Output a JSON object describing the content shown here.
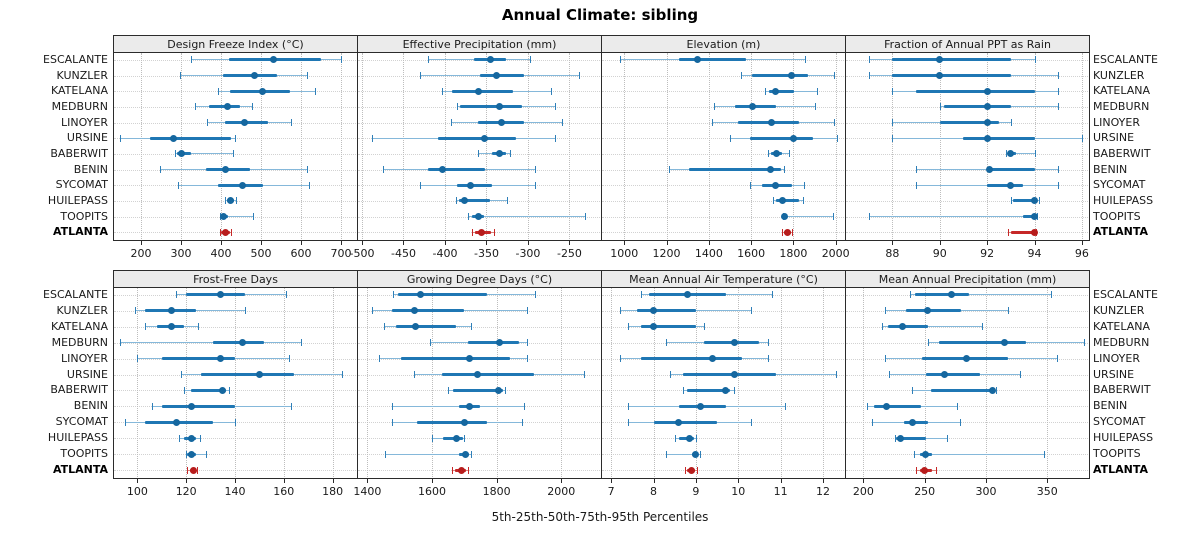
{
  "title": "Annual Climate: sibling",
  "caption": "5th-25th-50th-75th-95th Percentiles",
  "colors": {
    "blue_main": "#1f77b4",
    "blue_pale": "#85b8da",
    "blue_cap": "#2f7fb8",
    "blue_dot": "#15679f",
    "red_main": "#c62828",
    "red_pale": "#d9827a",
    "red_cap": "#c62828",
    "red_dot": "#b71c1c",
    "header_bg": "#ebebeb",
    "border": "#2b2b2b",
    "grid_vertical": "#bdbdbd",
    "grid_horizontal": "#d2d2d2"
  },
  "chart_data": {
    "type": "dotplot-percentile-trellis",
    "percentile_labels": [
      "5th",
      "25th",
      "50th",
      "75th",
      "95th"
    ],
    "rows": [
      "ESCALANTE",
      "KUNZLER",
      "KATELANA",
      "MEDBURN",
      "LINOYER",
      "URSINE",
      "BABERWIT",
      "BENIN",
      "SYCOMAT",
      "HUILEPASS",
      "TOOPITS",
      "ATLANTA"
    ],
    "highlight_row": "ATLANTA",
    "panels": [
      {
        "title": "Design Freeze Index (°C)",
        "ticks": [
          200,
          300,
          400,
          500,
          600,
          700
        ],
        "xlim": [
          130,
          740
        ],
        "values": [
          [
            325,
            420,
            530,
            650,
            700
          ],
          [
            297,
            405,
            483,
            540,
            615
          ],
          [
            392,
            422,
            504,
            572,
            634
          ],
          [
            336,
            371,
            415,
            447,
            477
          ],
          [
            365,
            409,
            458,
            517,
            576
          ],
          [
            147,
            223,
            280,
            425,
            435
          ],
          [
            286,
            291,
            302,
            325,
            429
          ],
          [
            247,
            362,
            411,
            472,
            615
          ],
          [
            293,
            392,
            454,
            504,
            621
          ],
          [
            411,
            415,
            424,
            432,
            437
          ],
          [
            397,
            399,
            405,
            418,
            480
          ],
          [
            398,
            401,
            411,
            422,
            424
          ]
        ]
      },
      {
        "title": "Effective Precipitation (mm)",
        "ticks": [
          -500,
          -450,
          -400,
          -350,
          -300,
          -250
        ],
        "xlim": [
          -506,
          -212
        ],
        "values": [
          [
            -420,
            -365,
            -345,
            -327,
            -297
          ],
          [
            -430,
            -358,
            -338,
            -305,
            -238
          ],
          [
            -404,
            -392,
            -360,
            -318,
            -272
          ],
          [
            -386,
            -382,
            -334,
            -307,
            -267
          ],
          [
            -393,
            -360,
            -332,
            -305,
            -259
          ],
          [
            -488,
            -408,
            -352,
            -315,
            -268
          ],
          [
            -360,
            -343,
            -334,
            -327,
            -322
          ],
          [
            -475,
            -420,
            -403,
            -352,
            -292
          ],
          [
            -430,
            -386,
            -369,
            -343,
            -291
          ],
          [
            -387,
            -383,
            -377,
            -346,
            -325
          ],
          [
            -372,
            -367,
            -360,
            -353,
            -231
          ],
          [
            -367,
            -364,
            -356,
            -344,
            -341
          ]
        ]
      },
      {
        "title": "Elevation (m)",
        "ticks": [
          1000,
          1200,
          1400,
          1600,
          1800,
          2000
        ],
        "xlim": [
          890,
          2044
        ],
        "values": [
          [
            980,
            1260,
            1345,
            1575,
            1855
          ],
          [
            1550,
            1605,
            1790,
            1870,
            1990
          ],
          [
            1665,
            1685,
            1715,
            1805,
            1910
          ],
          [
            1425,
            1525,
            1605,
            1720,
            1900
          ],
          [
            1415,
            1540,
            1695,
            1825,
            1990
          ],
          [
            1500,
            1595,
            1800,
            1895,
            2005
          ],
          [
            1680,
            1695,
            1720,
            1745,
            1780
          ],
          [
            1210,
            1305,
            1690,
            1740,
            1755
          ],
          [
            1595,
            1650,
            1715,
            1795,
            1850
          ],
          [
            1705,
            1720,
            1750,
            1825,
            1845
          ],
          [
            1750,
            1753,
            1756,
            1765,
            1985
          ],
          [
            1748,
            1756,
            1770,
            1788,
            1795
          ]
        ]
      },
      {
        "title": "Fraction of Annual PPT as Rain",
        "ticks": [
          88,
          90,
          92,
          94,
          96
        ],
        "xlim": [
          86.0,
          96.3
        ],
        "values": [
          [
            87,
            88,
            90,
            93,
            94
          ],
          [
            87,
            88,
            90,
            93,
            95
          ],
          [
            88,
            89,
            92,
            94,
            95
          ],
          [
            90,
            90.2,
            92,
            93,
            95
          ],
          [
            88,
            90,
            92,
            92.5,
            93
          ],
          [
            88,
            91,
            92,
            94,
            96
          ],
          [
            92.8,
            92.9,
            93,
            93.2,
            94
          ],
          [
            89,
            92,
            92.1,
            94,
            95
          ],
          [
            89,
            92,
            93,
            93.5,
            95
          ],
          [
            93,
            93.1,
            94,
            94.1,
            94.2
          ],
          [
            87,
            93.5,
            94,
            94.05,
            94.1
          ],
          [
            92.9,
            93,
            94,
            94.02,
            94.05
          ]
        ]
      },
      {
        "title": "Frost-Free Days",
        "ticks": [
          100,
          120,
          140,
          160,
          180
        ],
        "xlim": [
          90,
          190
        ],
        "values": [
          [
            116,
            120,
            134,
            144,
            161
          ],
          [
            99,
            103,
            114,
            124,
            144
          ],
          [
            103,
            108,
            114,
            119,
            125
          ],
          [
            93,
            131,
            143,
            152,
            167
          ],
          [
            100,
            110,
            134,
            140,
            162
          ],
          [
            118,
            126,
            150,
            164,
            184
          ],
          [
            119,
            122,
            135,
            136.5,
            137.5
          ],
          [
            106,
            110,
            122,
            140,
            163
          ],
          [
            95,
            103,
            116,
            131,
            140
          ],
          [
            117,
            119,
            122,
            124,
            125.5
          ],
          [
            120,
            120.5,
            122,
            124,
            128
          ],
          [
            120.5,
            121.5,
            123,
            124,
            124.5
          ]
        ]
      },
      {
        "title": "Growing Degree Days (°C)",
        "ticks": [
          1400,
          1600,
          1800,
          2000
        ],
        "xlim": [
          1368,
          2123
        ],
        "values": [
          [
            1480,
            1495,
            1565,
            1770,
            1920
          ],
          [
            1415,
            1475,
            1545,
            1700,
            1895
          ],
          [
            1450,
            1490,
            1550,
            1675,
            1720
          ],
          [
            1595,
            1710,
            1810,
            1870,
            1895
          ],
          [
            1435,
            1505,
            1715,
            1840,
            1895
          ],
          [
            1545,
            1630,
            1740,
            1915,
            2070
          ],
          [
            1650,
            1665,
            1805,
            1820,
            1825
          ],
          [
            1475,
            1685,
            1715,
            1750,
            1885
          ],
          [
            1475,
            1555,
            1700,
            1770,
            1880
          ],
          [
            1600,
            1635,
            1675,
            1695,
            1700
          ],
          [
            1455,
            1685,
            1705,
            1715,
            1722
          ],
          [
            1663,
            1670,
            1690,
            1705,
            1710
          ]
        ]
      },
      {
        "title": "Mean Annual Air Temperature (°C)",
        "ticks": [
          7,
          8,
          9,
          10,
          11,
          12
        ],
        "xlim": [
          6.76,
          12.52
        ],
        "values": [
          [
            7.7,
            7.9,
            8.8,
            9.7,
            10.8
          ],
          [
            7.2,
            7.6,
            8.0,
            9.0,
            10.3
          ],
          [
            7.4,
            7.7,
            8.0,
            9.0,
            9.2
          ],
          [
            8.3,
            9.2,
            9.9,
            10.5,
            10.7
          ],
          [
            7.2,
            7.7,
            9.4,
            10.1,
            10.7
          ],
          [
            8.4,
            8.7,
            9.9,
            10.9,
            12.3
          ],
          [
            8.7,
            8.8,
            9.7,
            9.8,
            9.9
          ],
          [
            7.4,
            8.6,
            9.1,
            9.7,
            11.1
          ],
          [
            7.4,
            8.0,
            8.6,
            9.5,
            10.3
          ],
          [
            8.5,
            8.6,
            8.85,
            8.95,
            9.0
          ],
          [
            8.3,
            8.9,
            9.0,
            9.05,
            9.1
          ],
          [
            8.75,
            8.8,
            8.9,
            8.98,
            9.02
          ]
        ]
      },
      {
        "title": "Mean Annual Precipitation (mm)",
        "ticks": [
          200,
          250,
          300,
          350
        ],
        "xlim": [
          185,
          384
        ],
        "values": [
          [
            238,
            242,
            272,
            286,
            353
          ],
          [
            218,
            235,
            252,
            280,
            318
          ],
          [
            215,
            220,
            232,
            253,
            297
          ],
          [
            253,
            262,
            315,
            333,
            380
          ],
          [
            218,
            248,
            284,
            318,
            358
          ],
          [
            221,
            251,
            266,
            295,
            328
          ],
          [
            240,
            255,
            305,
            307,
            308
          ],
          [
            203,
            209,
            219,
            247,
            276
          ],
          [
            207,
            233,
            240,
            253,
            279
          ],
          [
            226,
            227,
            230,
            251,
            268
          ],
          [
            241,
            246,
            251,
            256,
            347
          ],
          [
            243,
            246,
            250,
            256,
            259
          ]
        ]
      }
    ]
  }
}
